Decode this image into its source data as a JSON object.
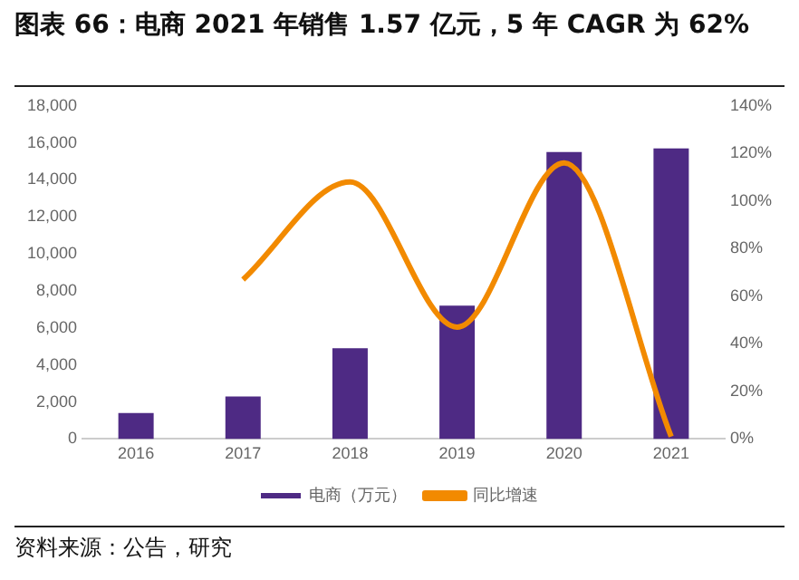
{
  "chart_data": {
    "type": "bar",
    "title": "图表 66：电商 2021 年销售 1.57 亿元，5 年 CAGR 为 62%",
    "categories": [
      "2016",
      "2017",
      "2018",
      "2019",
      "2020",
      "2021"
    ],
    "series": [
      {
        "name": "电商（万元）",
        "color": "#4e2a84",
        "values": [
          1400,
          2300,
          4900,
          7200,
          15500,
          15700
        ]
      },
      {
        "name": "同比增速",
        "type": "line",
        "axis": "y2",
        "color": "#f28a00",
        "values": [
          null,
          67,
          108,
          47,
          116,
          1
        ]
      }
    ],
    "ylim": [
      0,
      18000
    ],
    "yticks": [
      0,
      {
        "value": 2000,
        "label": "2,000"
      },
      {
        "value": 4000,
        "label": "4,000"
      },
      {
        "value": 6000,
        "label": "6,000"
      },
      {
        "value": 8000,
        "label": "8,000"
      },
      {
        "value": 10000,
        "label": "10,000"
      },
      {
        "value": 12000,
        "label": "12,000"
      },
      {
        "value": 14000,
        "label": "14,000"
      },
      {
        "value": 16000,
        "label": "16,000"
      },
      {
        "value": 18000,
        "label": "18,000"
      }
    ],
    "y2lim": [
      0,
      140
    ],
    "y2ticks": [
      {
        "value": 0,
        "label": "0%"
      },
      {
        "value": 20,
        "label": "20%"
      },
      {
        "value": 40,
        "label": "40%"
      },
      {
        "value": 60,
        "label": "60%"
      },
      {
        "value": 80,
        "label": "80%"
      },
      {
        "value": 100,
        "label": "100%"
      },
      {
        "value": 120,
        "label": "120%"
      },
      {
        "value": 140,
        "label": "140%"
      }
    ],
    "legend": "bottom",
    "grid": false,
    "annotations": [
      "资料来源：公告，研究"
    ]
  }
}
